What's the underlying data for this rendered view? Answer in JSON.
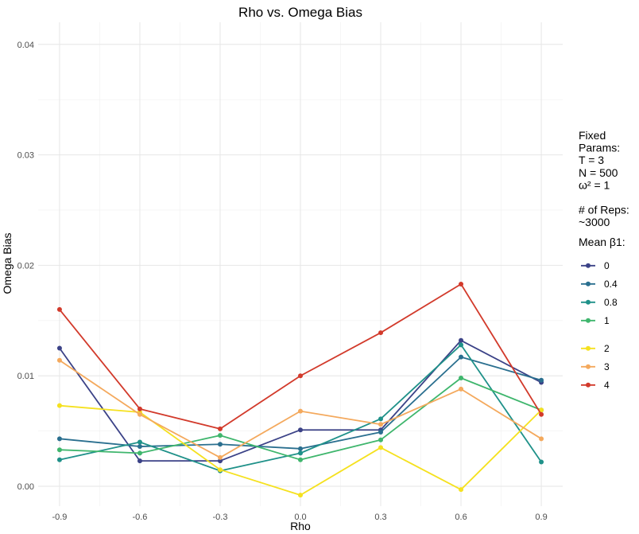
{
  "chart_data": {
    "type": "line",
    "title": "Rho vs. Omega Bias",
    "xlabel": "Rho",
    "ylabel": "Omega Bias",
    "x": [
      -0.9,
      -0.6,
      -0.3,
      0.0,
      0.3,
      0.6,
      0.9
    ],
    "x_tick_labels": [
      "-0.9",
      "-0.6",
      "-0.3",
      "0.0",
      "0.3",
      "0.6",
      "0.9"
    ],
    "xlim": [
      -0.98,
      0.98
    ],
    "ylim": [
      -0.0018,
      0.042
    ],
    "y_ticks": [
      0.0,
      0.01,
      0.02,
      0.03,
      0.04
    ],
    "y_tick_labels": [
      "0.00",
      "0.01",
      "0.02",
      "0.03",
      "0.04"
    ],
    "grid": true,
    "legend_position": "right",
    "legend_notes": [
      "Fixed",
      "Params:",
      "T = 3",
      "N = 500",
      "ω² = 1",
      "",
      "# of Reps:",
      "~3000"
    ],
    "legend_title": "Mean β1:",
    "series": [
      {
        "name": "0",
        "color": "#3b4287",
        "values": [
          0.0125,
          0.0023,
          0.0023,
          0.0051,
          0.0051,
          0.0132,
          0.0094
        ]
      },
      {
        "name": "0.4",
        "color": "#2a6f8f",
        "values": [
          0.0043,
          0.0036,
          0.0038,
          0.0034,
          0.0049,
          0.0117,
          0.0096
        ]
      },
      {
        "name": "0.8",
        "color": "#1f9189",
        "values": [
          0.0024,
          0.004,
          0.0014,
          0.003,
          0.0061,
          0.0128,
          0.0022
        ]
      },
      {
        "name": "1",
        "color": "#3fb66d",
        "values": [
          0.0033,
          0.003,
          0.0046,
          0.0024,
          0.0042,
          0.0098,
          0.0069
        ]
      },
      {
        "name": "2",
        "color": "#f5e11f",
        "values": [
          0.0073,
          0.0067,
          0.0015,
          -0.0008,
          0.0035,
          -0.0003,
          0.0069
        ]
      },
      {
        "name": "3",
        "color": "#f4a95d",
        "values": [
          0.0114,
          0.0065,
          0.0026,
          0.0068,
          0.0056,
          0.0088,
          0.0043
        ]
      },
      {
        "name": "4",
        "color": "#d23a2b",
        "values": [
          0.016,
          0.007,
          0.0052,
          0.01,
          0.0139,
          0.0183,
          0.0065
        ]
      }
    ]
  }
}
